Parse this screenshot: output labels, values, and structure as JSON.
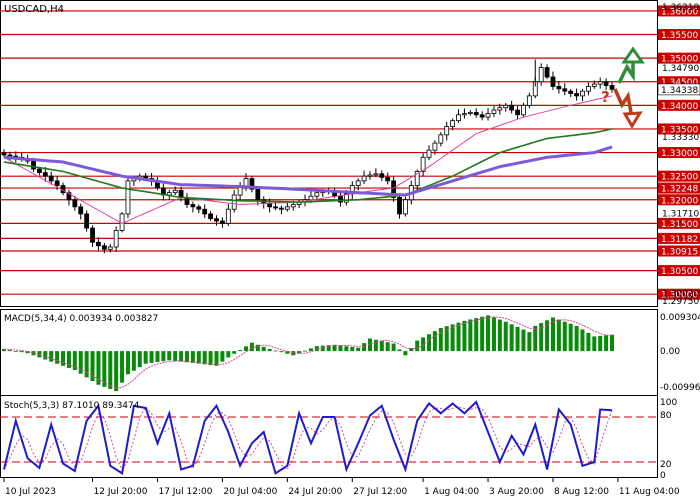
{
  "chart_data": {
    "type": "line",
    "symbol_label": "USDCAD,H4",
    "price_axis": {
      "top_label": "1.36210",
      "bottom_label": "1.29750",
      "ylim": [
        1.2975,
        1.3621
      ],
      "gray_labels": [
        "1.34790",
        "1.33330",
        "1.31710",
        "1.30020"
      ],
      "current_price_label": "1.34338",
      "current_price": 1.34338
    },
    "levels": [
      {
        "label": "1.36000",
        "value": 1.36
      },
      {
        "label": "1.35500",
        "value": 1.355
      },
      {
        "label": "1.35000",
        "value": 1.35
      },
      {
        "label": "1.34500",
        "value": 1.345
      },
      {
        "label": "1.34000",
        "value": 1.34
      },
      {
        "label": "1.33500",
        "value": 1.335
      },
      {
        "label": "1.33000",
        "value": 1.33
      },
      {
        "label": "1.32500",
        "value": 1.325
      },
      {
        "label": "1.32248",
        "value": 1.32248
      },
      {
        "label": "1.32000",
        "value": 1.32
      },
      {
        "label": "1.31500",
        "value": 1.315
      },
      {
        "label": "1.31182",
        "value": 1.31182
      },
      {
        "label": "1.30915",
        "value": 1.30915
      },
      {
        "label": "1.30500",
        "value": 1.305
      },
      {
        "label": "1.30000",
        "value": 1.3
      }
    ],
    "x_ticks": [
      "10 Jul 2023",
      "12 Jul 20:00",
      "17 Jul 12:00",
      "20 Jul 04:00",
      "24 Jul 20:00",
      "27 Jul 12:00",
      "1 Aug 04:00",
      "3 Aug 20:00",
      "8 Aug 12:00",
      "11 Aug 04:00"
    ],
    "bar_count": 104,
    "price_keys": [
      [
        0,
        1.3295
      ],
      [
        2,
        1.329
      ],
      [
        4,
        1.3282
      ],
      [
        5,
        1.3265
      ],
      [
        7,
        1.325
      ],
      [
        9,
        1.323
      ],
      [
        11,
        1.32
      ],
      [
        13,
        1.317
      ],
      [
        15,
        1.311
      ],
      [
        17,
        1.3095
      ],
      [
        18,
        1.31
      ],
      [
        20,
        1.317
      ],
      [
        21,
        1.324
      ],
      [
        23,
        1.325
      ],
      [
        25,
        1.324
      ],
      [
        27,
        1.321
      ],
      [
        29,
        1.322
      ],
      [
        31,
        1.319
      ],
      [
        33,
        1.318
      ],
      [
        35,
        1.316
      ],
      [
        37,
        1.315
      ],
      [
        39,
        1.321
      ],
      [
        41,
        1.3245
      ],
      [
        43,
        1.32
      ],
      [
        45,
        1.3185
      ],
      [
        47,
        1.318
      ],
      [
        49,
        1.319
      ],
      [
        51,
        1.32
      ],
      [
        53,
        1.3215
      ],
      [
        55,
        1.322
      ],
      [
        57,
        1.3195
      ],
      [
        59,
        1.323
      ],
      [
        61,
        1.325
      ],
      [
        63,
        1.3255
      ],
      [
        65,
        1.324
      ],
      [
        67,
        1.317
      ],
      [
        69,
        1.323
      ],
      [
        71,
        1.329
      ],
      [
        73,
        1.332
      ],
      [
        75,
        1.3355
      ],
      [
        77,
        1.338
      ],
      [
        79,
        1.3385
      ],
      [
        81,
        1.3375
      ],
      [
        83,
        1.339
      ],
      [
        85,
        1.34
      ],
      [
        87,
        1.338
      ],
      [
        89,
        1.342
      ],
      [
        91,
        1.348
      ],
      [
        93,
        1.344
      ],
      [
        95,
        1.343
      ],
      [
        97,
        1.342
      ],
      [
        99,
        1.344
      ],
      [
        101,
        1.345
      ],
      [
        103,
        1.3434
      ]
    ],
    "moving_averages": [
      {
        "color": "#e040a0",
        "period": 5,
        "keys": [
          [
            0,
            1.329
          ],
          [
            10,
            1.322
          ],
          [
            20,
            1.315
          ],
          [
            30,
            1.3205
          ],
          [
            40,
            1.319
          ],
          [
            50,
            1.3195
          ],
          [
            60,
            1.3215
          ],
          [
            66,
            1.3225
          ],
          [
            72,
            1.327
          ],
          [
            80,
            1.334
          ],
          [
            88,
            1.3375
          ],
          [
            96,
            1.34
          ],
          [
            103,
            1.342
          ]
        ]
      },
      {
        "color": "#1e7a1e",
        "period": 34,
        "keys": [
          [
            0,
            1.328
          ],
          [
            10,
            1.326
          ],
          [
            20,
            1.3225
          ],
          [
            30,
            1.3205
          ],
          [
            40,
            1.3198
          ],
          [
            50,
            1.3195
          ],
          [
            60,
            1.32
          ],
          [
            68,
            1.321
          ],
          [
            76,
            1.325
          ],
          [
            84,
            1.33
          ],
          [
            92,
            1.333
          ],
          [
            100,
            1.3342
          ],
          [
            103,
            1.335
          ]
        ]
      },
      {
        "color": "#7a5ad8",
        "period": 55,
        "keys": [
          [
            0,
            1.329
          ],
          [
            10,
            1.328
          ],
          [
            20,
            1.325
          ],
          [
            30,
            1.3232
          ],
          [
            40,
            1.3228
          ],
          [
            50,
            1.3222
          ],
          [
            60,
            1.3215
          ],
          [
            68,
            1.321
          ],
          [
            76,
            1.324
          ],
          [
            84,
            1.327
          ],
          [
            92,
            1.329
          ],
          [
            100,
            1.33
          ],
          [
            103,
            1.3312
          ]
        ]
      }
    ],
    "forecast": {
      "up_arrow_color": "#2e8b3a",
      "down_arrow_color": "#c0391b",
      "question_mark": "?",
      "question_color": "#c0391b"
    },
    "macd": {
      "label": "MACD(5,34,4) 0.003934 0.003827",
      "axis_labels": [
        "0.009304",
        "0.00",
        "-0.009965"
      ],
      "ylim": [
        -0.009965,
        0.009304
      ],
      "bar_color": "#0a8a0a",
      "signal_color": "#e040a0",
      "keys": [
        [
          0,
          0.0005
        ],
        [
          4,
          -0.0005
        ],
        [
          8,
          -0.0025
        ],
        [
          12,
          -0.0045
        ],
        [
          16,
          -0.008
        ],
        [
          19,
          -0.0095
        ],
        [
          21,
          -0.0055
        ],
        [
          24,
          -0.003
        ],
        [
          28,
          -0.0022
        ],
        [
          32,
          -0.0028
        ],
        [
          36,
          -0.0035
        ],
        [
          38,
          -0.0015
        ],
        [
          42,
          0.002
        ],
        [
          45,
          0.0005
        ],
        [
          49,
          -0.001
        ],
        [
          53,
          0.0012
        ],
        [
          56,
          0.0015
        ],
        [
          60,
          0.0008
        ],
        [
          62,
          0.003
        ],
        [
          66,
          0.0018
        ],
        [
          68,
          -0.001
        ],
        [
          70,
          0.0025
        ],
        [
          74,
          0.0055
        ],
        [
          78,
          0.0072
        ],
        [
          82,
          0.0085
        ],
        [
          85,
          0.007
        ],
        [
          89,
          0.0045
        ],
        [
          90,
          0.006
        ],
        [
          93,
          0.008
        ],
        [
          97,
          0.006
        ],
        [
          100,
          0.0035
        ],
        [
          103,
          0.0039
        ]
      ]
    },
    "stochastic": {
      "label": "Stoch(5,3,3) 87.1010 89.3474",
      "axis_labels": [
        "100",
        "80",
        "20",
        "0"
      ],
      "ylim": [
        0,
        100
      ],
      "levels": [
        80,
        20
      ],
      "main_color": "#1c1ccf",
      "signal_color": "#e040a0",
      "level_color": "#cc0000",
      "keys": [
        [
          0,
          10
        ],
        [
          2,
          75
        ],
        [
          4,
          25
        ],
        [
          6,
          12
        ],
        [
          8,
          70
        ],
        [
          10,
          18
        ],
        [
          12,
          8
        ],
        [
          14,
          75
        ],
        [
          16,
          95
        ],
        [
          18,
          15
        ],
        [
          20,
          5
        ],
        [
          22,
          95
        ],
        [
          24,
          92
        ],
        [
          26,
          45
        ],
        [
          28,
          85
        ],
        [
          30,
          10
        ],
        [
          32,
          15
        ],
        [
          34,
          75
        ],
        [
          36,
          95
        ],
        [
          38,
          60
        ],
        [
          40,
          15
        ],
        [
          42,
          45
        ],
        [
          44,
          60
        ],
        [
          46,
          5
        ],
        [
          48,
          15
        ],
        [
          50,
          85
        ],
        [
          52,
          45
        ],
        [
          54,
          80
        ],
        [
          56,
          80
        ],
        [
          58,
          10
        ],
        [
          60,
          45
        ],
        [
          62,
          82
        ],
        [
          64,
          95
        ],
        [
          66,
          50
        ],
        [
          68,
          10
        ],
        [
          70,
          75
        ],
        [
          72,
          98
        ],
        [
          74,
          85
        ],
        [
          76,
          98
        ],
        [
          78,
          85
        ],
        [
          80,
          100
        ],
        [
          82,
          60
        ],
        [
          84,
          20
        ],
        [
          86,
          55
        ],
        [
          88,
          30
        ],
        [
          90,
          70
        ],
        [
          92,
          10
        ],
        [
          94,
          90
        ],
        [
          96,
          70
        ],
        [
          98,
          15
        ],
        [
          100,
          20
        ],
        [
          101,
          90
        ],
        [
          103,
          89
        ]
      ]
    }
  }
}
